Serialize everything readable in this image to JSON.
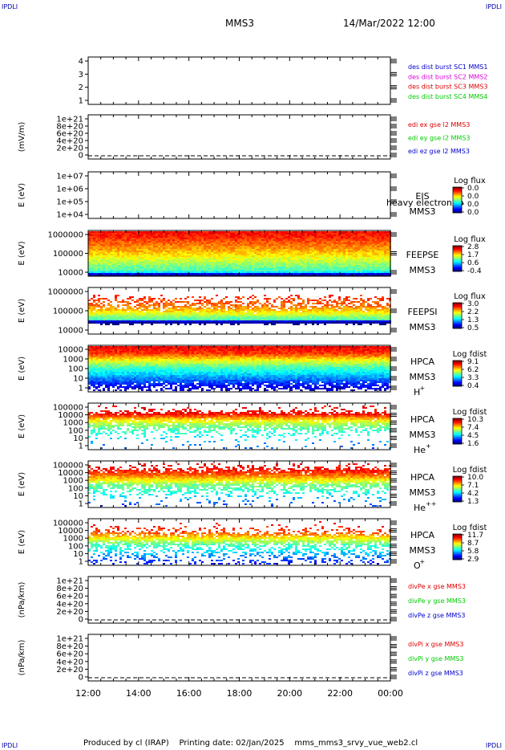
{
  "header": {
    "corner_label": "IPDLI",
    "spacecraft": "MMS3",
    "datetime": "14/Mar/2022 12:00"
  },
  "footer": {
    "produced_by": "Produced by cl (IRAP)",
    "printing_date": "Printing date: 02/Jan/2025",
    "filename": "mms_mms3_srvy_vue_web2.cl"
  },
  "x_axis": {
    "ticks": [
      "12:00",
      "14:00",
      "16:00",
      "18:00",
      "20:00",
      "22:00",
      "00:00"
    ]
  },
  "colors": {
    "red": "#dd0000",
    "green": "#00cc00",
    "blue": "#0000cc",
    "magenta": "#dd00dd",
    "corner": "#0000aa"
  },
  "panels": [
    {
      "id": "burst",
      "ylabel": "",
      "ticks": [
        "4",
        "3",
        "2",
        "1"
      ],
      "kind": "empty",
      "legend": [
        {
          "text": "des dist burst SC1 MMS1",
          "color": "#0000cc"
        },
        {
          "text": "des dist burst SC2 MMS2",
          "color": "#dd00dd"
        },
        {
          "text": "des dist burst SC3 MMS3",
          "color": "#dd0000"
        },
        {
          "text": "des dist burst SC4 MMS4",
          "color": "#00cc00"
        }
      ]
    },
    {
      "id": "edi",
      "ylabel": "(mV/m)",
      "ticks": [
        "1e+21",
        "8e+20",
        "6e+20",
        "4e+20",
        "2e+20",
        "0"
      ],
      "kind": "dashed",
      "legend": [
        {
          "text": "edi ex gse l2 MMS3",
          "color": "#dd0000"
        },
        {
          "text": "edi ey gse l2 MMS3",
          "color": "#00cc00"
        },
        {
          "text": "edi ez gse l2 MMS3",
          "color": "#0000cc"
        }
      ]
    },
    {
      "id": "eis",
      "ylabel": "E (eV)",
      "ticks": [
        "1e+07",
        "1e+06",
        "1e+05",
        "1e+04"
      ],
      "kind": "empty",
      "instrument": [
        "EIS",
        "MMS3"
      ],
      "overlay": "heavy electron to",
      "cbar": {
        "title": "Log flux",
        "labels": [
          "0.0",
          "0.0",
          "0.0",
          "0.0"
        ]
      }
    },
    {
      "id": "feepse",
      "ylabel": "E (eV)",
      "ticks": [
        "1000000",
        "100000",
        "10000"
      ],
      "kind": "spec",
      "profile": "feepse",
      "instrument": [
        "FEEPSE",
        "MMS3"
      ],
      "cbar": {
        "title": "Log flux",
        "labels": [
          "2.8",
          "1.7",
          "0.6",
          "-0.4"
        ]
      }
    },
    {
      "id": "feepsi",
      "ylabel": "E (eV)",
      "ticks": [
        "1000000",
        "100000",
        "10000"
      ],
      "kind": "spec",
      "profile": "feepsi",
      "instrument": [
        "FEEPSI",
        "MMS3"
      ],
      "cbar": {
        "title": "Log flux",
        "labels": [
          "3.0",
          "2.2",
          "1.3",
          "0.5"
        ]
      }
    },
    {
      "id": "hpca_h",
      "ylabel": "E (eV)",
      "ticks": [
        "10000",
        "1000",
        "100",
        "10",
        "1"
      ],
      "kind": "spec",
      "profile": "h",
      "instrument": [
        "HPCA",
        "MMS3"
      ],
      "species": "H",
      "charge": "+",
      "cbar": {
        "title": "Log fdist",
        "labels": [
          "9.1",
          "6.2",
          "3.3",
          "0.4"
        ]
      }
    },
    {
      "id": "hpca_he",
      "ylabel": "E (eV)",
      "ticks": [
        "100000",
        "10000",
        "1000",
        "100",
        "10",
        "1"
      ],
      "kind": "spec",
      "profile": "he",
      "instrument": [
        "HPCA",
        "MMS3"
      ],
      "species": "He",
      "charge": "+",
      "cbar": {
        "title": "Log fdist",
        "labels": [
          "10.3",
          "7.4",
          "4.5",
          "1.6"
        ]
      }
    },
    {
      "id": "hpca_hepp",
      "ylabel": "E (eV)",
      "ticks": [
        "100000",
        "10000",
        "1000",
        "100",
        "10",
        "1"
      ],
      "kind": "spec",
      "profile": "hepp",
      "instrument": [
        "HPCA",
        "MMS3"
      ],
      "species": "He",
      "charge": "++",
      "cbar": {
        "title": "Log fdist",
        "labels": [
          "10.0",
          "7.1",
          "4.2",
          "1.3"
        ]
      }
    },
    {
      "id": "hpca_o",
      "ylabel": "E (eV)",
      "ticks": [
        "100000",
        "10000",
        "1000",
        "100",
        "10",
        "1"
      ],
      "kind": "spec",
      "profile": "o",
      "instrument": [
        "HPCA",
        "MMS3"
      ],
      "species": "O",
      "charge": "+",
      "cbar": {
        "title": "Log fdist",
        "labels": [
          "11.7",
          "8.7",
          "5.8",
          "2.9"
        ]
      }
    },
    {
      "id": "divpe",
      "ylabel": "(nPa/km)",
      "ticks": [
        "1e+21",
        "8e+20",
        "6e+20",
        "4e+20",
        "2e+20",
        "0"
      ],
      "kind": "dashed",
      "legend": [
        {
          "text": "divPe x gse MMS3",
          "color": "#dd0000"
        },
        {
          "text": "divPe y gse MMS3",
          "color": "#00cc00"
        },
        {
          "text": "divPe z gse MMS3",
          "color": "#0000cc"
        }
      ]
    },
    {
      "id": "divpi",
      "ylabel": "(nPa/km)",
      "ticks": [
        "1e+21",
        "8e+20",
        "6e+20",
        "4e+20",
        "2e+20",
        "0"
      ],
      "kind": "dashed",
      "legend": [
        {
          "text": "divPi x gse MMS3",
          "color": "#dd0000"
        },
        {
          "text": "divPi y gse MMS3",
          "color": "#00cc00"
        },
        {
          "text": "divPi z gse MMS3",
          "color": "#0000cc"
        }
      ]
    }
  ]
}
